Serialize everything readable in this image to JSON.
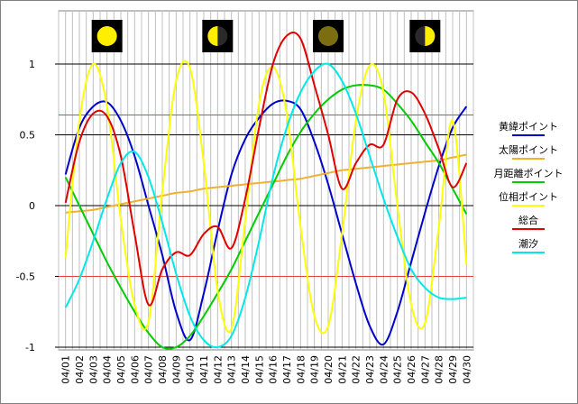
{
  "chart_data": {
    "type": "line",
    "x": [
      "04/01",
      "04/02",
      "04/03",
      "04/04",
      "04/05",
      "04/06",
      "04/07",
      "04/08",
      "04/09",
      "04/10",
      "04/11",
      "04/12",
      "04/13",
      "04/14",
      "04/15",
      "04/16",
      "04/17",
      "04/18",
      "04/19",
      "04/20",
      "04/21",
      "04/22",
      "04/23",
      "04/24",
      "04/25",
      "04/26",
      "04/27",
      "04/28",
      "04/29",
      "04/30"
    ],
    "ylim": [
      -1.0,
      1.3
    ],
    "yticks": [
      1,
      0.5,
      0,
      -0.5,
      -1
    ],
    "ytick_labels": [
      "1",
      "0.5",
      "0",
      "-0.5",
      "-1"
    ],
    "grid": true,
    "legend_position": "right",
    "reference_lines": [
      {
        "value": 0.64,
        "color": "#e84040"
      },
      {
        "value": -0.5,
        "color": "#e84040"
      }
    ],
    "moon_phases": [
      {
        "date": "04/04",
        "phase": "full",
        "icon": "full-moon-icon"
      },
      {
        "date": "04/12",
        "phase": "last-quarter",
        "icon": "last-quarter-moon-icon"
      },
      {
        "date": "04/20",
        "phase": "new",
        "icon": "new-moon-icon"
      },
      {
        "date": "04/27",
        "phase": "first-quarter",
        "icon": "first-quarter-moon-icon"
      }
    ],
    "series": [
      {
        "name": "黄緯ポイント",
        "color": "#0000cc",
        "values": [
          0.22,
          0.55,
          0.7,
          0.73,
          0.6,
          0.35,
          0.0,
          -0.35,
          -0.75,
          -0.95,
          -0.62,
          -0.18,
          0.22,
          0.47,
          0.62,
          0.72,
          0.74,
          0.68,
          0.45,
          0.15,
          -0.2,
          -0.55,
          -0.85,
          -0.98,
          -0.75,
          -0.4,
          -0.05,
          0.28,
          0.55,
          0.7
        ]
      },
      {
        "name": "太陽ポイント",
        "color": "#f0b030",
        "values": [
          -0.05,
          -0.04,
          -0.03,
          -0.01,
          0.01,
          0.03,
          0.05,
          0.07,
          0.09,
          0.1,
          0.12,
          0.13,
          0.14,
          0.15,
          0.16,
          0.17,
          0.18,
          0.19,
          0.21,
          0.23,
          0.25,
          0.26,
          0.27,
          0.28,
          0.29,
          0.3,
          0.31,
          0.32,
          0.34,
          0.36
        ]
      },
      {
        "name": "月距離ポイント",
        "color": "#00cc00",
        "values": [
          0.2,
          0.0,
          -0.2,
          -0.4,
          -0.58,
          -0.75,
          -0.9,
          -1.0,
          -1.0,
          -0.92,
          -0.78,
          -0.62,
          -0.45,
          -0.25,
          -0.05,
          0.15,
          0.35,
          0.52,
          0.65,
          0.75,
          0.82,
          0.85,
          0.85,
          0.82,
          0.72,
          0.6,
          0.45,
          0.3,
          0.12,
          -0.06
        ]
      },
      {
        "name": "位相ポイント",
        "color": "#ffff00",
        "values": [
          -0.37,
          0.6,
          1.0,
          0.7,
          -0.1,
          -0.7,
          -0.82,
          0.1,
          0.88,
          0.97,
          0.3,
          -0.6,
          -0.87,
          -0.1,
          0.72,
          0.98,
          0.65,
          -0.15,
          -0.78,
          -0.85,
          -0.2,
          0.6,
          0.99,
          0.8,
          0.0,
          -0.7,
          -0.83,
          -0.15,
          0.6,
          -0.42
        ]
      },
      {
        "name": "総合",
        "color": "#e00000",
        "values": [
          0.02,
          0.45,
          0.65,
          0.63,
          0.35,
          -0.2,
          -0.7,
          -0.45,
          -0.33,
          -0.35,
          -0.2,
          -0.15,
          -0.3,
          0.05,
          0.55,
          1.0,
          1.2,
          1.18,
          0.85,
          0.5,
          0.12,
          0.3,
          0.43,
          0.43,
          0.75,
          0.8,
          0.65,
          0.4,
          0.13,
          0.3
        ]
      },
      {
        "name": "潮汐",
        "color": "#00e8e8",
        "values": [
          -0.72,
          -0.52,
          -0.25,
          0.05,
          0.3,
          0.38,
          0.2,
          -0.12,
          -0.48,
          -0.78,
          -0.95,
          -1.0,
          -0.92,
          -0.65,
          -0.25,
          0.2,
          0.55,
          0.8,
          0.95,
          1.0,
          0.88,
          0.65,
          0.35,
          0.05,
          -0.22,
          -0.45,
          -0.58,
          -0.65,
          -0.66,
          -0.65
        ]
      }
    ]
  }
}
